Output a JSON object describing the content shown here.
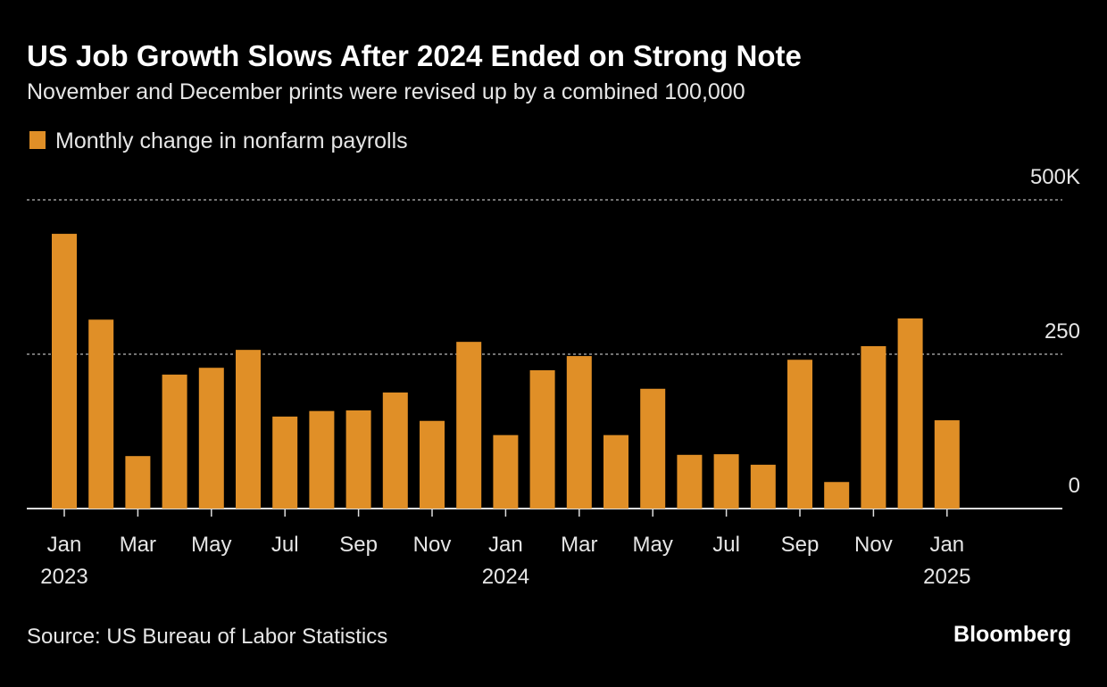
{
  "chart_data": {
    "type": "bar",
    "title": "US Job Growth Slows After 2024 Ended on Strong Note",
    "subtitle": "November and December prints were revised up by a combined 100,000",
    "source": "Source: US Bureau of Labor Statistics",
    "brand": "Bloomberg",
    "series": [
      {
        "name": "Monthly change in nonfarm payrolls",
        "color": "#e08f27",
        "values": [
          445,
          306,
          85,
          217,
          228,
          257,
          149,
          158,
          159,
          188,
          142,
          270,
          119,
          224,
          247,
          119,
          194,
          87,
          88,
          71,
          241,
          43,
          263,
          308,
          143
        ]
      }
    ],
    "categories": [
      "Jan 2023",
      null,
      "Mar",
      null,
      "May",
      null,
      "Jul",
      null,
      "Sep",
      null,
      "Nov",
      null,
      "Jan 2024",
      null,
      "Mar",
      null,
      "May",
      null,
      "Jul",
      null,
      "Sep",
      null,
      "Nov",
      null,
      "Jan 2025"
    ],
    "ylim": [
      0,
      500
    ],
    "yticks": [
      0,
      250,
      {
        "value": 500,
        "label": "500K"
      }
    ],
    "grid": true
  }
}
